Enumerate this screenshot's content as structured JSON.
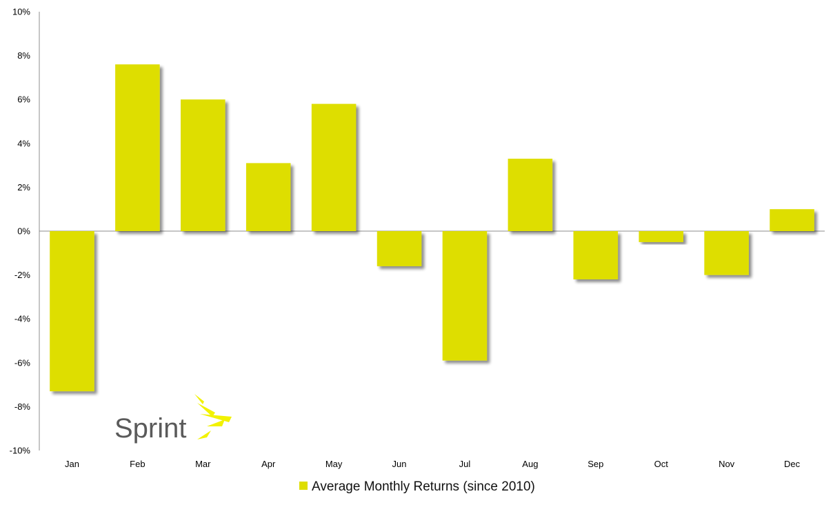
{
  "chart_data": {
    "type": "bar",
    "categories": [
      "Jan",
      "Feb",
      "Mar",
      "Apr",
      "May",
      "Jun",
      "Jul",
      "Aug",
      "Sep",
      "Oct",
      "Nov",
      "Dec"
    ],
    "series": [
      {
        "name": "Average Monthly Returns (since 2010)",
        "values": [
          -7.3,
          7.6,
          6.0,
          3.1,
          5.8,
          -1.6,
          -5.9,
          3.3,
          -2.2,
          -0.5,
          -2.0,
          1.0
        ],
        "color": "#dede00"
      }
    ],
    "yticks": [
      "10%",
      "8%",
      "6%",
      "4%",
      "2%",
      "0%",
      "-2%",
      "-4%",
      "-6%",
      "-8%",
      "-10%"
    ],
    "ylim": [
      -10,
      10
    ],
    "grid": false,
    "legend": "bottom-center"
  },
  "logo": {
    "name": "sprint-logo",
    "text": "Sprint",
    "color": "#5a5a5a",
    "accent": "#f2f200"
  }
}
